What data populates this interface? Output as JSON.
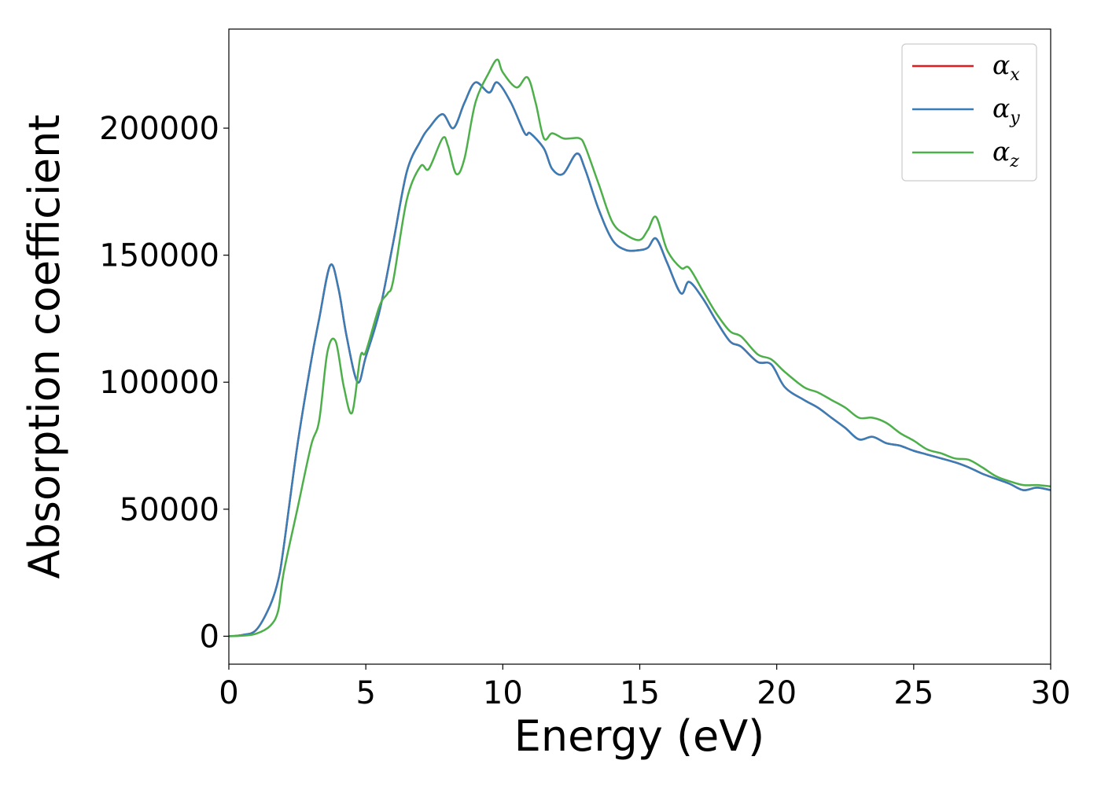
{
  "chart_data": {
    "type": "line",
    "xlabel": "Energy (eV)",
    "ylabel": "Absorption coefficient",
    "xlim": [
      0,
      30
    ],
    "ylim": [
      -11000,
      239000
    ],
    "xticks": [
      0,
      5,
      10,
      15,
      20,
      25,
      30
    ],
    "yticks": [
      0,
      50000,
      100000,
      150000,
      200000
    ],
    "grid": false,
    "legend_position": "upper right",
    "legend": [
      {
        "symbol": "α",
        "sub": "x",
        "color": "#e41a1c"
      },
      {
        "symbol": "α",
        "sub": "y",
        "color": "#377eb8"
      },
      {
        "symbol": "α",
        "sub": "z",
        "color": "#4daf4a"
      }
    ],
    "series": [
      {
        "name": "αx",
        "color": "#e41a1c",
        "x": [
          0,
          0.5,
          1.0,
          1.5,
          1.8,
          2.0,
          2.5,
          3.0,
          3.3,
          3.7,
          4.0,
          4.3,
          4.7,
          5.0,
          5.5,
          6.0,
          6.5,
          7.0,
          7.3,
          7.8,
          8.2,
          8.6,
          9.0,
          9.5,
          9.8,
          10.3,
          10.8,
          11.0,
          11.5,
          11.8,
          12.2,
          12.7,
          13.0,
          13.5,
          14.0,
          14.5,
          15.0,
          15.3,
          15.6,
          16.0,
          16.5,
          16.8,
          17.3,
          17.8,
          18.3,
          18.7,
          19.3,
          19.8,
          20.3,
          21.0,
          21.5,
          22.0,
          22.5,
          23.0,
          23.5,
          24.0,
          24.5,
          25.0,
          25.5,
          26.0,
          26.5,
          27.0,
          27.5,
          28.0,
          28.5,
          29.0,
          29.5,
          30.0
        ],
        "y": [
          0,
          500,
          2500,
          12000,
          22000,
          35000,
          75000,
          108000,
          125000,
          146000,
          137000,
          118000,
          100000,
          110000,
          128000,
          155000,
          183000,
          195000,
          200000,
          205500,
          200000,
          210000,
          218000,
          214000,
          218000,
          210000,
          198000,
          198000,
          192000,
          184000,
          182000,
          190000,
          184000,
          168000,
          156000,
          152000,
          152000,
          153000,
          156500,
          147000,
          135000,
          139500,
          133000,
          124000,
          116000,
          114000,
          108000,
          107000,
          98000,
          93000,
          90000,
          86000,
          82000,
          77500,
          78500,
          76000,
          75000,
          73000,
          71500,
          70000,
          68500,
          66500,
          64000,
          62000,
          60000,
          57500,
          58500,
          57500
        ]
      },
      {
        "name": "αy",
        "color": "#377eb8",
        "x": [
          0,
          0.5,
          1.0,
          1.5,
          1.8,
          2.0,
          2.5,
          3.0,
          3.3,
          3.7,
          4.0,
          4.3,
          4.7,
          5.0,
          5.5,
          6.0,
          6.5,
          7.0,
          7.3,
          7.8,
          8.2,
          8.6,
          9.0,
          9.5,
          9.8,
          10.3,
          10.8,
          11.0,
          11.5,
          11.8,
          12.2,
          12.7,
          13.0,
          13.5,
          14.0,
          14.5,
          15.0,
          15.3,
          15.6,
          16.0,
          16.5,
          16.8,
          17.3,
          17.8,
          18.3,
          18.7,
          19.3,
          19.8,
          20.3,
          21.0,
          21.5,
          22.0,
          22.5,
          23.0,
          23.5,
          24.0,
          24.5,
          25.0,
          25.5,
          26.0,
          26.5,
          27.0,
          27.5,
          28.0,
          28.5,
          29.0,
          29.5,
          30.0
        ],
        "y": [
          0,
          500,
          2500,
          12000,
          22000,
          35000,
          75000,
          108000,
          125000,
          146000,
          137000,
          118000,
          100000,
          110000,
          128000,
          155000,
          183000,
          195000,
          200000,
          205500,
          200000,
          210000,
          218000,
          214000,
          218000,
          210000,
          198000,
          198000,
          192000,
          184000,
          182000,
          190000,
          184000,
          168000,
          156000,
          152000,
          152000,
          153000,
          156500,
          147000,
          135000,
          139500,
          133000,
          124000,
          116000,
          114000,
          108000,
          107000,
          98000,
          93000,
          90000,
          86000,
          82000,
          77500,
          78500,
          76000,
          75000,
          73000,
          71500,
          70000,
          68500,
          66500,
          64000,
          62000,
          60000,
          57500,
          58500,
          57500
        ]
      },
      {
        "name": "αz",
        "color": "#4daf4a",
        "x": [
          0,
          0.5,
          1.0,
          1.5,
          1.8,
          2.0,
          2.5,
          3.0,
          3.3,
          3.6,
          3.9,
          4.2,
          4.5,
          4.8,
          5.0,
          5.5,
          5.8,
          6.0,
          6.5,
          7.0,
          7.3,
          7.8,
          8.0,
          8.3,
          8.6,
          9.0,
          9.5,
          9.8,
          10.0,
          10.5,
          10.9,
          11.2,
          11.5,
          11.8,
          12.2,
          12.5,
          12.8,
          13.0,
          13.5,
          14.0,
          14.5,
          15.0,
          15.3,
          15.6,
          16.0,
          16.5,
          16.8,
          17.3,
          17.8,
          18.3,
          18.7,
          19.3,
          19.8,
          20.3,
          21.0,
          21.5,
          22.0,
          22.5,
          23.0,
          23.5,
          24.0,
          24.5,
          25.0,
          25.5,
          26.0,
          26.5,
          27.0,
          27.5,
          28.0,
          28.5,
          29.0,
          29.5,
          30.0
        ],
        "y": [
          0,
          200,
          1000,
          4000,
          10000,
          25000,
          50000,
          75000,
          85000,
          112000,
          116000,
          98000,
          88000,
          110000,
          112000,
          130000,
          135000,
          140000,
          172000,
          185000,
          184000,
          196000,
          193000,
          182000,
          188000,
          210000,
          222000,
          227000,
          222000,
          216000,
          220000,
          210000,
          196000,
          198000,
          196000,
          196000,
          196000,
          193000,
          178000,
          163000,
          158000,
          156000,
          160000,
          165000,
          152000,
          145000,
          145000,
          136000,
          127000,
          120000,
          118000,
          111000,
          109000,
          104000,
          98000,
          96000,
          93000,
          90000,
          86000,
          86000,
          84000,
          80000,
          77000,
          73500,
          72000,
          70000,
          69500,
          66500,
          63000,
          61000,
          59500,
          59500,
          59000
        ]
      }
    ]
  }
}
